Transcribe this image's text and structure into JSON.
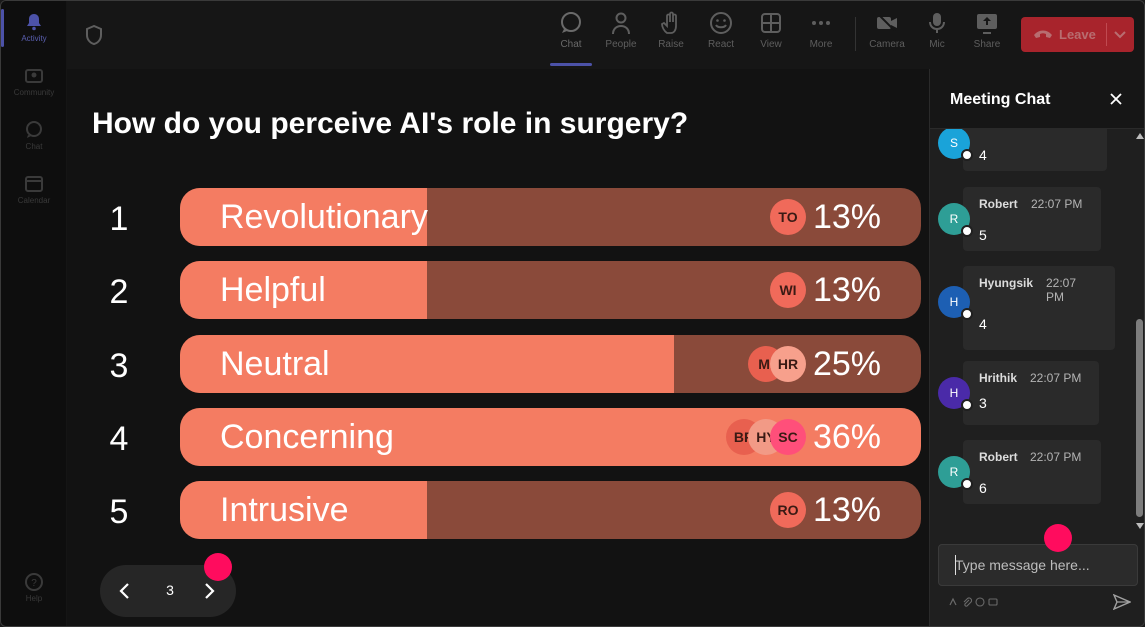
{
  "rail": {
    "items": [
      {
        "label": "Activity",
        "icon": "bell-icon"
      },
      {
        "label": "Community",
        "icon": "community-icon"
      },
      {
        "label": "Chat",
        "icon": "chat-icon"
      },
      {
        "label": "Calendar",
        "icon": "calendar-icon"
      },
      {
        "label": "Help",
        "icon": "help-icon"
      }
    ]
  },
  "toolbar": {
    "chat": "Chat",
    "people": "People",
    "raise": "Raise",
    "react": "React",
    "view": "View",
    "more": "More",
    "camera": "Camera",
    "mic": "Mic",
    "share": "Share",
    "leave": "Leave"
  },
  "poll": {
    "question": "How do you perceive AI's role in surgery?",
    "options": [
      {
        "num": "1",
        "label": "Revolutionary",
        "pct": "13%",
        "fraction": 0.13,
        "avatars": [
          "TO"
        ]
      },
      {
        "num": "2",
        "label": "Helpful",
        "pct": "13%",
        "fraction": 0.13,
        "avatars": [
          "WI"
        ]
      },
      {
        "num": "3",
        "label": "Neutral",
        "pct": "25%",
        "fraction": 0.25,
        "avatars": [
          "MI",
          "HR"
        ]
      },
      {
        "num": "4",
        "label": "Concerning",
        "pct": "36%",
        "fraction": 0.36,
        "avatars": [
          "BR",
          "HY",
          "SC"
        ]
      },
      {
        "num": "5",
        "label": "Intrusive",
        "pct": "13%",
        "fraction": 0.13,
        "avatars": [
          "RO"
        ]
      }
    ],
    "page": "3"
  },
  "chat": {
    "title": "Meeting Chat",
    "messages": [
      {
        "initial": "S",
        "sender": "",
        "time": "",
        "text": "4",
        "color": "#1aa3d9"
      },
      {
        "initial": "R",
        "sender": "Robert",
        "time": "22:07 PM",
        "text": "5",
        "color": "#2e9e96"
      },
      {
        "initial": "H",
        "sender": "Hyungsik",
        "time": "22:07 PM",
        "text": "4",
        "color": "#1d5fb3"
      },
      {
        "initial": "H",
        "sender": "Hrithik",
        "time": "22:07 PM",
        "text": "3",
        "color": "#4a2aa8"
      },
      {
        "initial": "R",
        "sender": "Robert",
        "time": "22:07 PM",
        "text": "6",
        "color": "#2e9e96"
      }
    ],
    "input_placeholder": "Type message here..."
  },
  "colors": {
    "bar_fill": "#f47c62",
    "bar_track": "#8a4a3a",
    "leave": "#a8242c",
    "accent": "#4c52a8",
    "cursor": "#ff0c5e"
  }
}
